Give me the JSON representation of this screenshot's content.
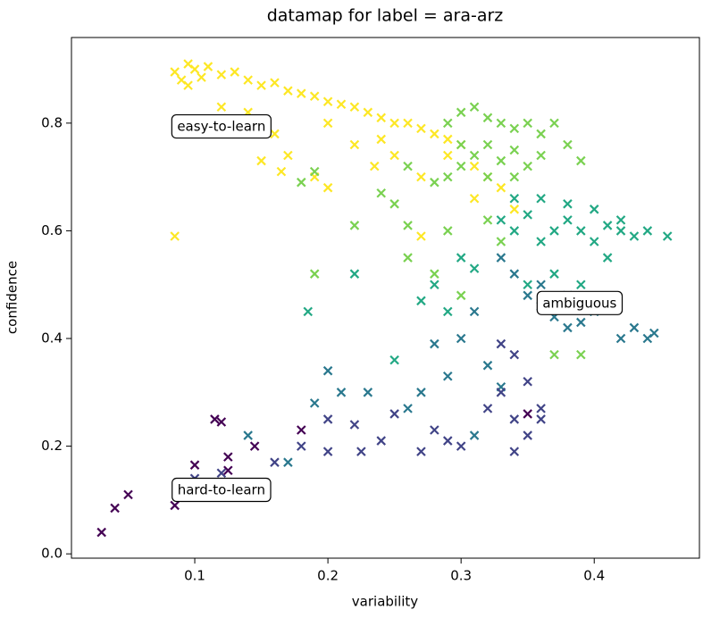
{
  "chart_data": {
    "type": "scatter",
    "title": "datamap for label = ara-arz",
    "xlabel": "variability",
    "ylabel": "confidence",
    "xlim": [
      0.0074,
      0.479
    ],
    "ylim": [
      -0.008,
      0.959
    ],
    "xticks": [
      0.1,
      0.2,
      0.3,
      0.4
    ],
    "yticks": [
      {
        "value": 0,
        "label": "0.0"
      },
      0.2,
      0.4,
      0.6,
      0.8
    ],
    "marker": "x",
    "annotations": [
      {
        "text": "easy-to-learn",
        "x": 0.12,
        "y": 0.793
      },
      {
        "text": "ambiguous",
        "x": 0.389,
        "y": 0.465
      },
      {
        "text": "hard-to-learn",
        "x": 0.12,
        "y": 0.118
      }
    ],
    "series": [
      {
        "color": "#fde725",
        "x": [
          0.085,
          0.09,
          0.095,
          0.1,
          0.105,
          0.11,
          0.12,
          0.13,
          0.14,
          0.15,
          0.16,
          0.17,
          0.18,
          0.19,
          0.2,
          0.21,
          0.22,
          0.23,
          0.24,
          0.25,
          0.26,
          0.27,
          0.28,
          0.29,
          0.3,
          0.31,
          0.32,
          0.33,
          0.12,
          0.14,
          0.16,
          0.17,
          0.19,
          0.2,
          0.22,
          0.25,
          0.27,
          0.27,
          0.085,
          0.095,
          0.2,
          0.24,
          0.15,
          0.165,
          0.235,
          0.29,
          0.31,
          0.34
        ],
        "values": [
          0.895,
          0.88,
          0.91,
          0.9,
          0.885,
          0.905,
          0.89,
          0.895,
          0.88,
          0.87,
          0.875,
          0.86,
          0.855,
          0.85,
          0.84,
          0.835,
          0.83,
          0.82,
          0.81,
          0.8,
          0.8,
          0.79,
          0.78,
          0.77,
          0.76,
          0.72,
          0.7,
          0.68,
          0.83,
          0.82,
          0.78,
          0.74,
          0.7,
          0.68,
          0.76,
          0.74,
          0.7,
          0.59,
          0.59,
          0.87,
          0.8,
          0.77,
          0.73,
          0.71,
          0.72,
          0.74,
          0.66,
          0.64
        ]
      },
      {
        "color": "#7ad151",
        "x": [
          0.29,
          0.3,
          0.31,
          0.32,
          0.33,
          0.34,
          0.35,
          0.36,
          0.37,
          0.3,
          0.31,
          0.32,
          0.33,
          0.34,
          0.35,
          0.36,
          0.32,
          0.34,
          0.3,
          0.29,
          0.28,
          0.38,
          0.39,
          0.26,
          0.25,
          0.24,
          0.19,
          0.26,
          0.28,
          0.3,
          0.29,
          0.32,
          0.33,
          0.37,
          0.39,
          0.26,
          0.22,
          0.18,
          0.19
        ],
        "values": [
          0.8,
          0.82,
          0.83,
          0.81,
          0.8,
          0.79,
          0.8,
          0.78,
          0.8,
          0.76,
          0.74,
          0.76,
          0.73,
          0.75,
          0.72,
          0.74,
          0.7,
          0.7,
          0.72,
          0.7,
          0.69,
          0.76,
          0.73,
          0.72,
          0.65,
          0.67,
          0.52,
          0.55,
          0.52,
          0.48,
          0.6,
          0.62,
          0.58,
          0.37,
          0.37,
          0.61,
          0.61,
          0.69,
          0.71
        ]
      },
      {
        "color": "#22a884",
        "x": [
          0.33,
          0.34,
          0.35,
          0.36,
          0.37,
          0.38,
          0.39,
          0.4,
          0.41,
          0.42,
          0.43,
          0.455,
          0.44,
          0.38,
          0.36,
          0.34,
          0.4,
          0.42,
          0.3,
          0.31,
          0.28,
          0.27,
          0.29,
          0.185,
          0.22,
          0.25,
          0.35,
          0.37,
          0.39,
          0.41
        ],
        "values": [
          0.62,
          0.6,
          0.63,
          0.58,
          0.6,
          0.62,
          0.6,
          0.58,
          0.61,
          0.6,
          0.59,
          0.59,
          0.6,
          0.65,
          0.66,
          0.66,
          0.64,
          0.62,
          0.55,
          0.53,
          0.5,
          0.47,
          0.45,
          0.45,
          0.52,
          0.36,
          0.5,
          0.52,
          0.5,
          0.55
        ]
      },
      {
        "color": "#2a788e",
        "x": [
          0.33,
          0.34,
          0.35,
          0.36,
          0.37,
          0.38,
          0.39,
          0.4,
          0.42,
          0.43,
          0.44,
          0.445,
          0.36,
          0.38,
          0.31,
          0.3,
          0.28,
          0.29,
          0.32,
          0.33,
          0.2,
          0.19,
          0.21,
          0.23,
          0.26,
          0.27,
          0.31,
          0.14,
          0.17
        ],
        "values": [
          0.55,
          0.52,
          0.48,
          0.46,
          0.44,
          0.42,
          0.43,
          0.45,
          0.4,
          0.42,
          0.4,
          0.41,
          0.5,
          0.48,
          0.45,
          0.4,
          0.39,
          0.33,
          0.35,
          0.31,
          0.34,
          0.28,
          0.3,
          0.3,
          0.27,
          0.3,
          0.22,
          0.22,
          0.17
        ]
      },
      {
        "color": "#414487",
        "x": [
          0.2,
          0.22,
          0.24,
          0.25,
          0.28,
          0.29,
          0.3,
          0.32,
          0.33,
          0.34,
          0.35,
          0.35,
          0.36,
          0.34,
          0.33,
          0.2,
          0.225,
          0.27,
          0.16,
          0.18,
          0.34,
          0.36,
          0.1,
          0.12
        ],
        "values": [
          0.25,
          0.24,
          0.21,
          0.26,
          0.23,
          0.21,
          0.2,
          0.27,
          0.3,
          0.25,
          0.22,
          0.32,
          0.27,
          0.37,
          0.39,
          0.19,
          0.19,
          0.19,
          0.17,
          0.2,
          0.19,
          0.25,
          0.14,
          0.15
        ]
      },
      {
        "color": "#440154",
        "x": [
          0.03,
          0.04,
          0.05,
          0.085,
          0.1,
          0.11,
          0.12,
          0.125,
          0.125,
          0.115,
          0.12,
          0.145,
          0.18,
          0.35
        ],
        "values": [
          0.04,
          0.085,
          0.11,
          0.09,
          0.165,
          0.12,
          0.11,
          0.155,
          0.18,
          0.25,
          0.245,
          0.2,
          0.23,
          0.26
        ]
      }
    ]
  }
}
